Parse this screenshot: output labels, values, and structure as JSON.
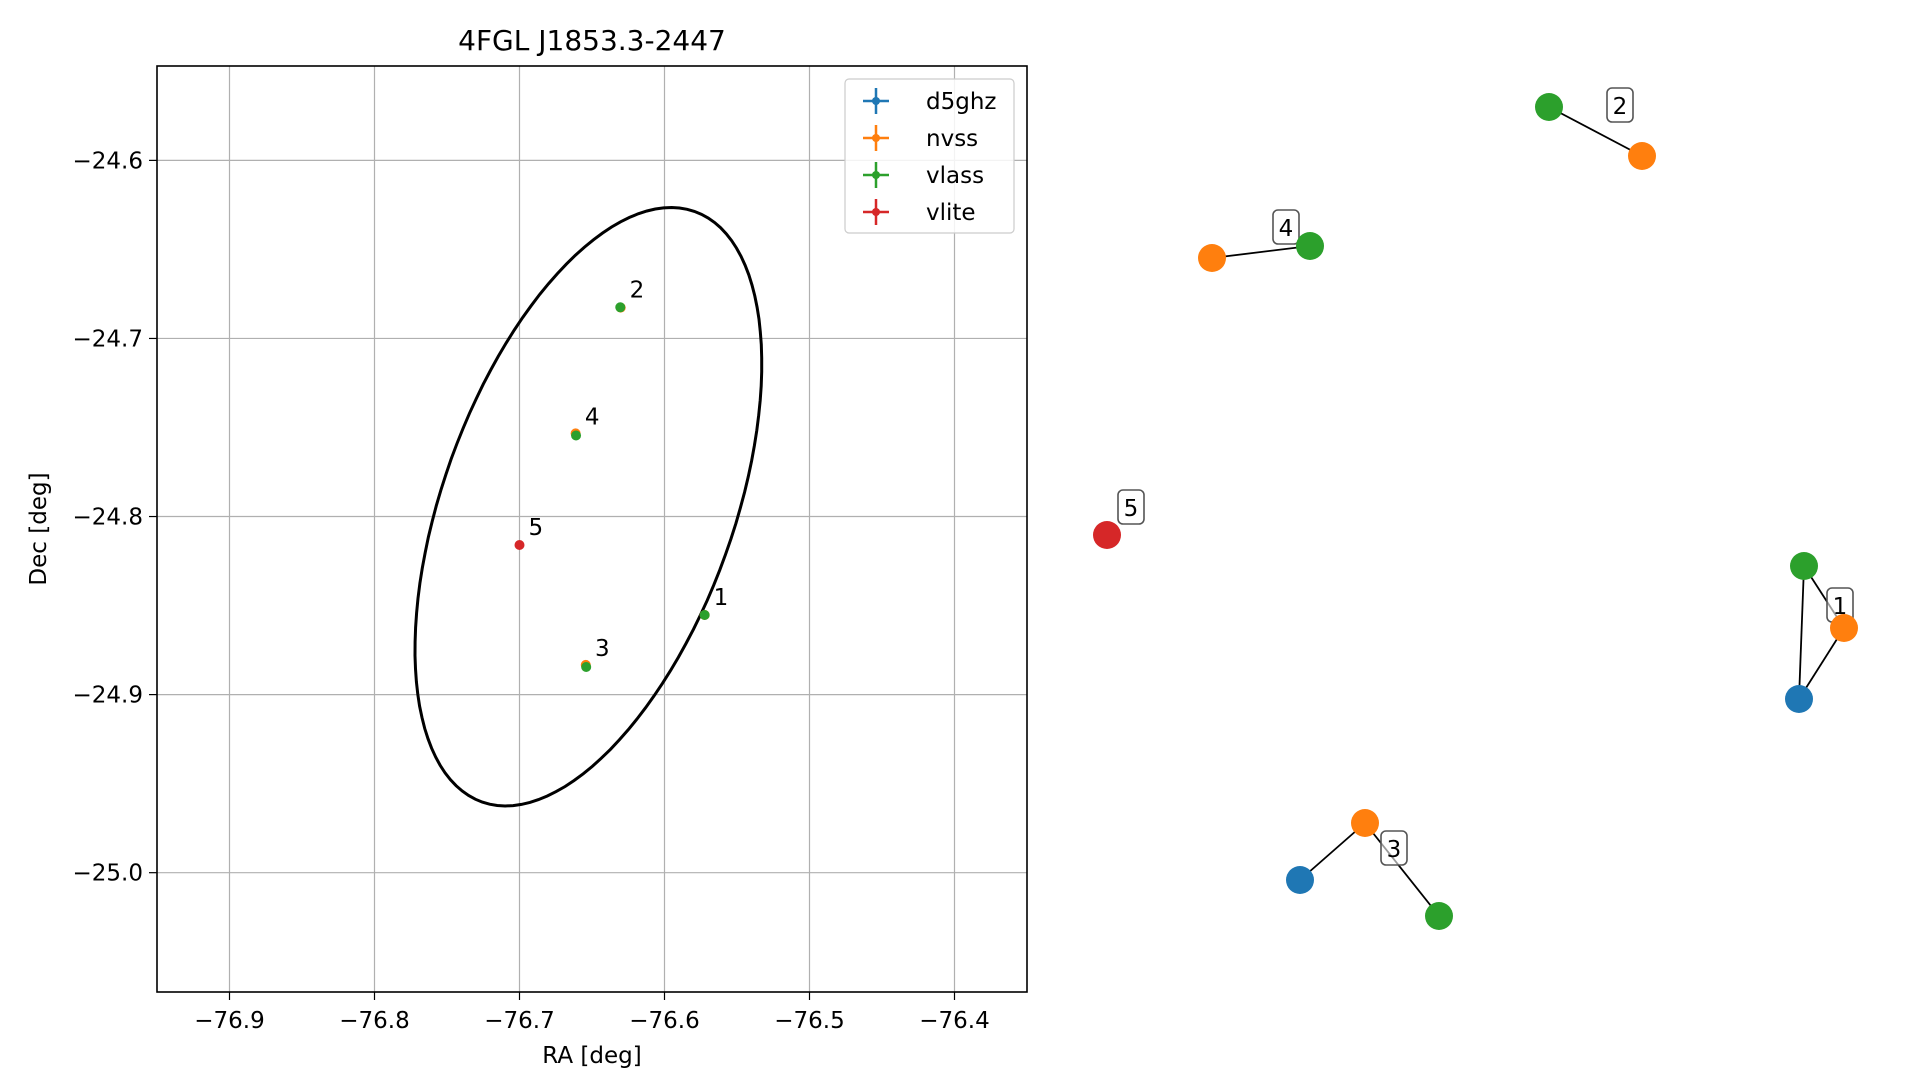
{
  "chart_data": [
    {
      "type": "scatter",
      "title": "4FGL J1853.3-2447",
      "xlabel": "RA [deg]",
      "ylabel": "Dec [deg]",
      "xlim": [
        -76.95,
        -76.35
      ],
      "ylim": [
        -25.067,
        -24.547
      ],
      "x_ticks": [
        -76.9,
        -76.8,
        -76.7,
        -76.6,
        -76.5,
        -76.4
      ],
      "x_tick_labels": [
        "−76.9",
        "−76.8",
        "−76.7",
        "−76.6",
        "−76.5",
        "−76.4"
      ],
      "y_ticks": [
        -24.6,
        -24.7,
        -24.8,
        -24.9,
        -25.0
      ],
      "y_tick_labels": [
        "−24.6",
        "−24.7",
        "−24.8",
        "−24.9",
        "−25.0"
      ],
      "grid": true,
      "legend_position": "top-right",
      "series": [
        {
          "name": "d5ghz",
          "color": "#1f77b4",
          "x": [],
          "y": []
        },
        {
          "name": "nvss",
          "color": "#ff7f0e",
          "x": [
            -76.5723,
            -76.6302,
            -76.6543,
            -76.6613
          ],
          "y": [
            -24.8553,
            -24.6827,
            -24.8833,
            -24.7533
          ]
        },
        {
          "name": "vlass",
          "color": "#2ca02c",
          "x": [
            -76.5723,
            -76.6305,
            -76.654,
            -76.661
          ],
          "y": [
            -24.8553,
            -24.6825,
            -24.8845,
            -24.7545
          ]
        },
        {
          "name": "vlite",
          "color": "#d62728",
          "x": [
            -76.7
          ],
          "y": [
            -24.816
          ]
        }
      ],
      "point_labels": [
        {
          "text": "1",
          "x": -76.5723,
          "y": -24.8553
        },
        {
          "text": "2",
          "x": -76.6303,
          "y": -24.6826
        },
        {
          "text": "3",
          "x": -76.6541,
          "y": -24.884
        },
        {
          "text": "4",
          "x": -76.6611,
          "y": -24.754
        },
        {
          "text": "5",
          "x": -76.7,
          "y": -24.816
        }
      ],
      "error_ellipse": {
        "center_ra": -76.6525,
        "center_dec": -24.7945,
        "semi_major_deg": 0.182,
        "semi_minor_deg": 0.097,
        "tilt_deg": -27,
        "color": "#000000"
      }
    },
    {
      "type": "diagram",
      "description_free": true,
      "nodes": [
        {
          "id": "n1",
          "catalog": "vlass",
          "color": "#2ca02c"
        },
        {
          "id": "n2",
          "catalog": "nvss",
          "color": "#ff7f0e"
        },
        {
          "id": "n3",
          "catalog": "d5ghz",
          "color": "#1f77b4"
        },
        {
          "id": "n4",
          "catalog": "vlass",
          "color": "#2ca02c"
        },
        {
          "id": "n5",
          "catalog": "nvss",
          "color": "#ff7f0e"
        },
        {
          "id": "n6",
          "catalog": "nvss",
          "color": "#ff7f0e"
        },
        {
          "id": "n7",
          "catalog": "d5ghz",
          "color": "#1f77b4"
        },
        {
          "id": "n8",
          "catalog": "vlass",
          "color": "#2ca02c"
        },
        {
          "id": "n9",
          "catalog": "nvss",
          "color": "#ff7f0e"
        },
        {
          "id": "n10",
          "catalog": "vlass",
          "color": "#2ca02c"
        },
        {
          "id": "n11",
          "catalog": "vlite",
          "color": "#d62728"
        }
      ],
      "edges": [
        [
          "n1",
          "n2"
        ],
        [
          "n1",
          "n3"
        ],
        [
          "n2",
          "n3"
        ],
        [
          "n4",
          "n5"
        ],
        [
          "n6",
          "n7"
        ],
        [
          "n6",
          "n8"
        ],
        [
          "n9",
          "n10"
        ]
      ],
      "group_labels": [
        "1",
        "2",
        "3",
        "4",
        "5"
      ]
    }
  ]
}
